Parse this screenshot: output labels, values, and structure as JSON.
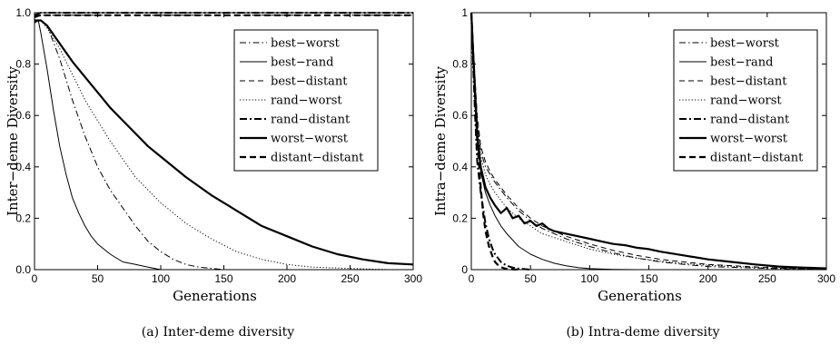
{
  "chart_data": [
    {
      "type": "line",
      "caption": "(a) Inter-deme diversity",
      "xlabel": "Generations",
      "ylabel": "Inter−deme Diversity",
      "xlim": [
        0,
        300
      ],
      "ylim": [
        0,
        1.0
      ],
      "xticks": [
        "0",
        "50",
        "100",
        "150",
        "200",
        "250",
        "300"
      ],
      "yticks": [
        "0.0",
        "0.2",
        "0.4",
        "0.6",
        "0.8",
        "1.0"
      ],
      "legend_position": "top-right",
      "series": [
        {
          "name": "best−worst",
          "style": "dashdot-thin",
          "x": [
            0,
            2,
            5,
            10,
            20,
            30,
            40,
            50,
            60,
            70,
            80,
            90,
            100,
            110,
            120,
            130,
            140,
            150
          ],
          "y": [
            0.96,
            0.97,
            0.97,
            0.95,
            0.82,
            0.66,
            0.52,
            0.4,
            0.31,
            0.24,
            0.17,
            0.11,
            0.07,
            0.04,
            0.02,
            0.01,
            0.005,
            0.0
          ]
        },
        {
          "name": "best−rand",
          "style": "solid-thin",
          "x": [
            0,
            3,
            5,
            10,
            15,
            20,
            25,
            30,
            35,
            40,
            45,
            50,
            55,
            60,
            70,
            80,
            90,
            100
          ],
          "y": [
            0.96,
            0.97,
            0.92,
            0.78,
            0.62,
            0.48,
            0.37,
            0.28,
            0.22,
            0.17,
            0.13,
            0.1,
            0.08,
            0.06,
            0.03,
            0.02,
            0.01,
            0.0
          ]
        },
        {
          "name": "best−distant",
          "style": "dashed-thin",
          "x": [
            0,
            5,
            10,
            30,
            60,
            100,
            150,
            200,
            250,
            300
          ],
          "y": [
            0.98,
            0.99,
            0.99,
            0.99,
            0.99,
            0.99,
            0.99,
            0.99,
            0.99,
            0.99
          ]
        },
        {
          "name": "rand−worst",
          "style": "dotted-thin",
          "x": [
            0,
            5,
            10,
            20,
            30,
            40,
            50,
            60,
            70,
            80,
            90,
            100,
            120,
            140,
            160,
            180,
            200,
            220,
            250,
            280,
            300
          ],
          "y": [
            0.97,
            0.97,
            0.94,
            0.86,
            0.76,
            0.66,
            0.58,
            0.5,
            0.43,
            0.36,
            0.31,
            0.26,
            0.18,
            0.12,
            0.07,
            0.04,
            0.02,
            0.01,
            0.005,
            0.0,
            0.0
          ]
        },
        {
          "name": "rand−distant",
          "style": "dashdot-thick",
          "x": [
            0,
            5,
            10,
            30,
            60,
            100,
            150,
            200,
            250,
            300
          ],
          "y": [
            0.99,
            1.0,
            1.0,
            1.0,
            1.0,
            1.0,
            1.0,
            1.0,
            1.0,
            1.0
          ]
        },
        {
          "name": "worst−worst",
          "style": "solid-thick",
          "x": [
            0,
            5,
            10,
            20,
            30,
            40,
            50,
            60,
            70,
            80,
            90,
            100,
            120,
            140,
            160,
            180,
            200,
            220,
            240,
            260,
            280,
            300
          ],
          "y": [
            0.97,
            0.97,
            0.95,
            0.88,
            0.81,
            0.75,
            0.69,
            0.63,
            0.58,
            0.53,
            0.48,
            0.44,
            0.36,
            0.29,
            0.23,
            0.17,
            0.13,
            0.09,
            0.06,
            0.04,
            0.025,
            0.02
          ]
        },
        {
          "name": "distant−distant",
          "style": "dashed-thick",
          "x": [
            0,
            5,
            10,
            30,
            60,
            100,
            150,
            200,
            250,
            300
          ],
          "y": [
            0.985,
            0.99,
            0.99,
            0.99,
            0.99,
            0.99,
            0.99,
            0.99,
            0.99,
            0.99
          ]
        }
      ]
    },
    {
      "type": "line",
      "caption": "(b) Intra-deme diversity",
      "xlabel": "Generations",
      "ylabel": "Intra−deme Diversity",
      "xlim": [
        0,
        300
      ],
      "ylim": [
        0,
        1.0
      ],
      "xticks": [
        "0",
        "50",
        "100",
        "150",
        "200",
        "250",
        "300"
      ],
      "yticks": [
        "0",
        "0.2",
        "0.4",
        "0.6",
        "0.8",
        "1"
      ],
      "legend_position": "top-right",
      "series": [
        {
          "name": "best−worst",
          "style": "dashdot-thin",
          "x": [
            0,
            3,
            5,
            8,
            12,
            16,
            20,
            25,
            30,
            40,
            50,
            60,
            80,
            100,
            120,
            140,
            160,
            180,
            200,
            250,
            300
          ],
          "y": [
            1.0,
            0.75,
            0.58,
            0.46,
            0.4,
            0.37,
            0.34,
            0.31,
            0.28,
            0.23,
            0.19,
            0.16,
            0.12,
            0.09,
            0.065,
            0.045,
            0.03,
            0.02,
            0.012,
            0.005,
            0.0
          ]
        },
        {
          "name": "best−rand",
          "style": "solid-thin",
          "x": [
            0,
            3,
            5,
            8,
            12,
            16,
            20,
            25,
            30,
            40,
            50,
            60,
            70,
            80,
            90,
            100,
            120,
            140
          ],
          "y": [
            1.0,
            0.7,
            0.5,
            0.38,
            0.3,
            0.25,
            0.21,
            0.17,
            0.14,
            0.09,
            0.06,
            0.04,
            0.025,
            0.015,
            0.008,
            0.004,
            0.001,
            0.0
          ]
        },
        {
          "name": "best−distant",
          "style": "dashed-thin",
          "x": [
            0,
            3,
            5,
            8,
            12,
            16,
            20,
            25,
            30,
            40,
            50,
            60,
            80,
            100,
            120,
            140,
            160,
            180,
            200,
            250,
            300
          ],
          "y": [
            1.0,
            0.76,
            0.6,
            0.48,
            0.42,
            0.38,
            0.35,
            0.32,
            0.29,
            0.24,
            0.2,
            0.17,
            0.13,
            0.1,
            0.075,
            0.055,
            0.04,
            0.03,
            0.02,
            0.008,
            0.0
          ]
        },
        {
          "name": "rand−worst",
          "style": "dotted-thin",
          "x": [
            0,
            3,
            5,
            8,
            12,
            16,
            20,
            25,
            30,
            40,
            50,
            60,
            80,
            100,
            120,
            140,
            160,
            180,
            200,
            250,
            300
          ],
          "y": [
            1.0,
            0.74,
            0.57,
            0.44,
            0.37,
            0.33,
            0.3,
            0.27,
            0.24,
            0.2,
            0.17,
            0.14,
            0.11,
            0.08,
            0.06,
            0.045,
            0.033,
            0.024,
            0.017,
            0.007,
            0.0
          ]
        },
        {
          "name": "rand−distant",
          "style": "dashdot-thick",
          "x": [
            0,
            3,
            5,
            8,
            10,
            12,
            15,
            18,
            20,
            25,
            30,
            35,
            40,
            45,
            50
          ],
          "y": [
            1.0,
            0.62,
            0.42,
            0.3,
            0.24,
            0.18,
            0.12,
            0.08,
            0.06,
            0.03,
            0.015,
            0.008,
            0.004,
            0.002,
            0.0
          ]
        },
        {
          "name": "worst−worst",
          "style": "solid-thick",
          "x": [
            0,
            3,
            5,
            8,
            12,
            16,
            20,
            25,
            30,
            35,
            40,
            45,
            50,
            55,
            60,
            65,
            70,
            80,
            90,
            100,
            110,
            120,
            130,
            140,
            150,
            160,
            180,
            200,
            220,
            240,
            260,
            280,
            300
          ],
          "y": [
            1.0,
            0.7,
            0.52,
            0.4,
            0.32,
            0.28,
            0.25,
            0.22,
            0.24,
            0.2,
            0.21,
            0.18,
            0.19,
            0.17,
            0.18,
            0.16,
            0.15,
            0.14,
            0.13,
            0.12,
            0.11,
            0.1,
            0.095,
            0.085,
            0.08,
            0.07,
            0.055,
            0.04,
            0.03,
            0.02,
            0.012,
            0.008,
            0.005
          ]
        },
        {
          "name": "distant−distant",
          "style": "dashed-thick",
          "x": [
            0,
            3,
            5,
            8,
            10,
            12,
            15,
            18,
            20,
            22,
            25,
            28,
            30,
            35,
            40
          ],
          "y": [
            1.0,
            0.7,
            0.5,
            0.32,
            0.22,
            0.15,
            0.09,
            0.05,
            0.03,
            0.02,
            0.01,
            0.005,
            0.003,
            0.001,
            0.0
          ]
        }
      ]
    }
  ]
}
